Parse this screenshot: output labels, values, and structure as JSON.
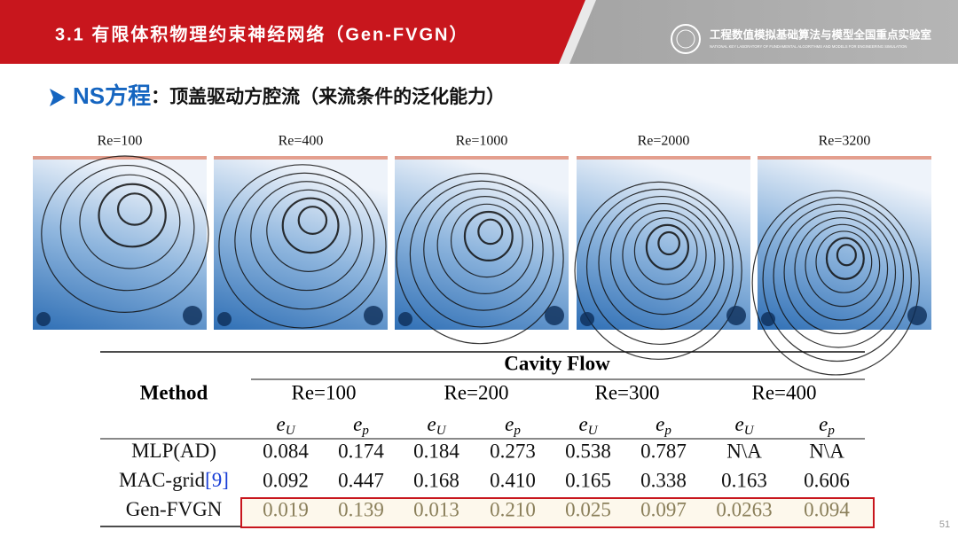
{
  "header": {
    "title": "3.1 有限体积物理约束神经网络（Gen-FVGN）",
    "lab_name": "工程数值模拟基础算法与模型全国重点实验室",
    "lab_name_en": "NATIONAL KEY LABORATORY OF FUNDAMENTAL ALGORITHMS AND MODELS FOR ENGINEERING SIMULATION"
  },
  "subtitle": {
    "highlight": "NS方程",
    "text": "：顶盖驱动方腔流（来流条件的泛化能力）"
  },
  "figures": [
    "Re=100",
    "Re=400",
    "Re=1000",
    "Re=2000",
    "Re=3200"
  ],
  "table": {
    "title": "Cavity Flow",
    "method_header": "Method",
    "groups": [
      "Re=100",
      "Re=200",
      "Re=300",
      "Re=400"
    ],
    "subheaders": [
      {
        "symbol": "e",
        "sub": "U"
      },
      {
        "symbol": "e",
        "sub": "p"
      },
      {
        "symbol": "e",
        "sub": "U"
      },
      {
        "symbol": "e",
        "sub": "p"
      },
      {
        "symbol": "e",
        "sub": "U"
      },
      {
        "symbol": "e",
        "sub": "p"
      },
      {
        "symbol": "e",
        "sub": "U"
      },
      {
        "symbol": "e",
        "sub": "p"
      }
    ],
    "rows": [
      {
        "method": "MLP(AD)",
        "values": [
          "0.084",
          "0.174",
          "0.184",
          "0.273",
          "0.538",
          "0.787",
          "N\\A",
          "N\\A"
        ]
      },
      {
        "method": "MAC-grid",
        "citation": "[9]",
        "values": [
          "0.092",
          "0.447",
          "0.168",
          "0.410",
          "0.165",
          "0.338",
          "0.163",
          "0.606"
        ]
      },
      {
        "method": "Gen-FVGN",
        "values": [
          "0.019",
          "0.139",
          "0.013",
          "0.210",
          "0.025",
          "0.097",
          "0.0263",
          "0.094"
        ]
      }
    ]
  },
  "page_number": "51"
}
